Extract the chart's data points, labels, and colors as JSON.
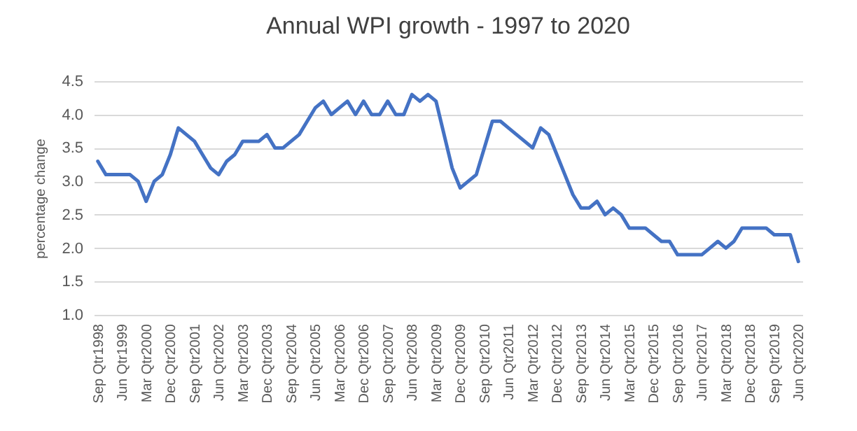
{
  "chart_data": {
    "type": "line",
    "title": "Annual WPI growth - 1997 to 2020",
    "ylabel": "percentage change",
    "categories": [
      "Sep Qtr1998",
      null,
      null,
      "Jun Qtr1999",
      null,
      null,
      "Mar Qtr2000",
      null,
      null,
      "Dec Qtr2000",
      null,
      null,
      "Sep Qtr2001",
      null,
      null,
      "Jun Qtr2002",
      null,
      null,
      "Mar Qtr2003",
      null,
      null,
      "Dec Qtr2003",
      null,
      null,
      "Sep Qtr2004",
      null,
      null,
      "Jun Qtr2005",
      null,
      null,
      "Mar Qtr2006",
      null,
      null,
      "Dec Qtr2006",
      null,
      null,
      "Sep Qtr2007",
      null,
      null,
      "Jun Qtr2008",
      null,
      null,
      "Mar Qtr2009",
      null,
      null,
      "Dec Qtr2009",
      null,
      null,
      "Sep Qtr2010",
      null,
      null,
      "Jun Qtr2011",
      null,
      null,
      "Mar Qtr2012",
      null,
      null,
      "Dec Qtr2012",
      null,
      null,
      "Sep Qtr2013",
      null,
      null,
      "Jun Qtr2014",
      null,
      null,
      "Mar Qtr2015",
      null,
      null,
      "Dec Qtr2015",
      null,
      null,
      "Sep Qtr2016",
      null,
      null,
      "Jun Qtr2017",
      null,
      null,
      "Mar Qtr2018",
      null,
      null,
      "Dec Qtr2018",
      null,
      null,
      "Sep Qtr2019",
      null,
      null,
      "Jun Qtr2020"
    ],
    "series": [
      {
        "color": "#4472c4",
        "values": [
          3.3,
          3.1,
          3.1,
          3.1,
          3.1,
          3.0,
          2.7,
          3.0,
          3.1,
          3.4,
          3.8,
          3.7,
          3.6,
          3.4,
          3.2,
          3.1,
          3.3,
          3.4,
          3.6,
          3.6,
          3.6,
          3.7,
          3.5,
          3.5,
          3.6,
          3.7,
          3.9,
          4.1,
          4.2,
          4.0,
          4.1,
          4.2,
          4.0,
          4.2,
          4.0,
          4.0,
          4.2,
          4.0,
          4.0,
          4.3,
          4.2,
          4.3,
          4.2,
          3.7,
          3.2,
          2.9,
          3.0,
          3.1,
          3.5,
          3.9,
          3.9,
          3.8,
          3.7,
          3.6,
          3.5,
          3.8,
          3.7,
          3.4,
          3.1,
          2.8,
          2.6,
          2.6,
          2.7,
          2.5,
          2.6,
          2.5,
          2.3,
          2.3,
          2.3,
          2.2,
          2.1,
          2.1,
          1.9,
          1.9,
          1.9,
          1.9,
          2.0,
          2.1,
          2.0,
          2.1,
          2.3,
          2.3,
          2.3,
          2.3,
          2.2,
          2.2,
          2.2,
          1.8
        ]
      }
    ],
    "ylim": [
      1,
      4.5
    ],
    "yticks": [
      {
        "value": 1,
        "label": "1.0"
      },
      {
        "value": 1.5,
        "label": "1.5"
      },
      {
        "value": 2,
        "label": "2.0"
      },
      {
        "value": 2.5,
        "label": "2.5"
      },
      {
        "value": 3,
        "label": "3.0"
      },
      {
        "value": 3.5,
        "label": "3.5"
      },
      {
        "value": 4,
        "label": "4.0"
      },
      {
        "value": 4.5,
        "label": "4.5"
      }
    ],
    "grid": "y",
    "marker": "none",
    "line_style": "solid",
    "legend": false
  }
}
